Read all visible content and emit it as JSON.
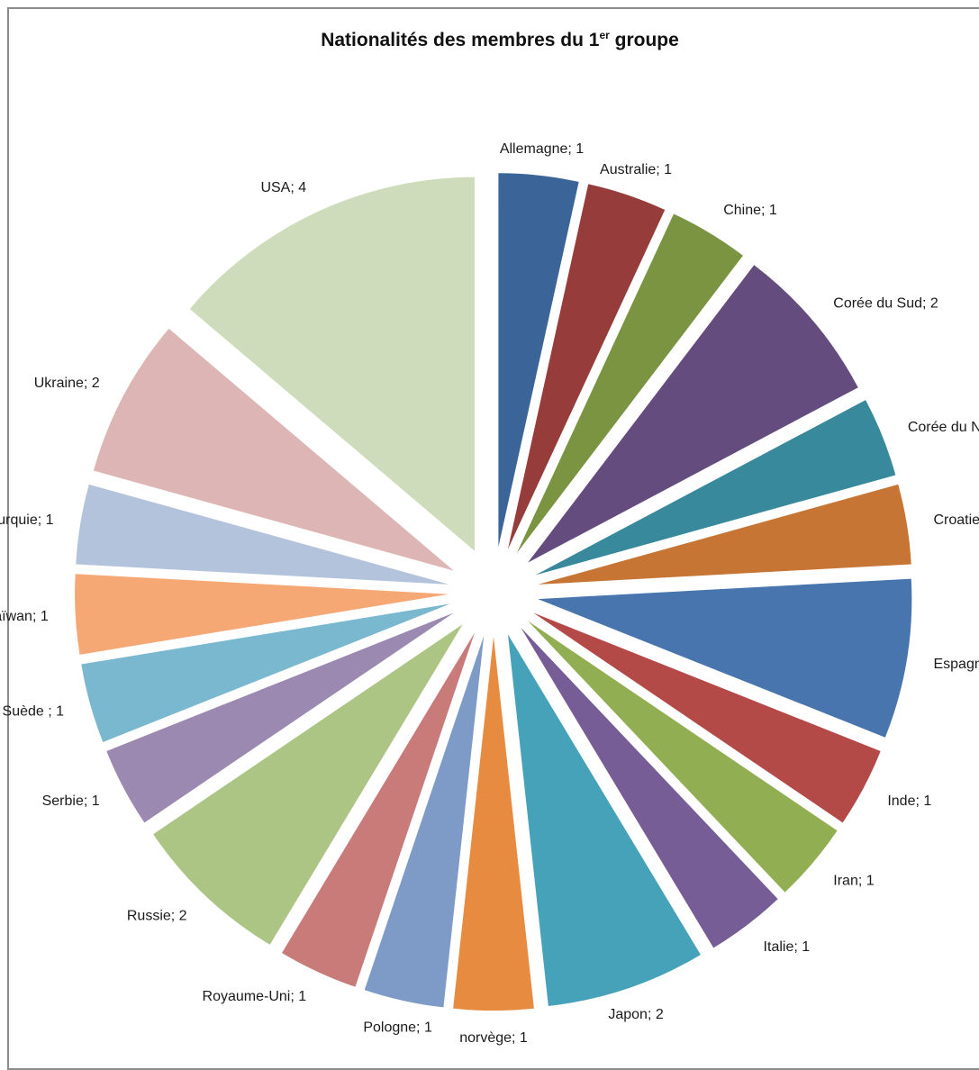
{
  "chart_data": {
    "type": "pie",
    "title": "Nationalités des membres du 1",
    "title_sup": "er",
    "title_tail": " groupe",
    "exploded": true,
    "label_format": "category; value",
    "slices": [
      {
        "label": "Allemagne",
        "value": 1,
        "color": "#3B6598"
      },
      {
        "label": "Australie",
        "value": 1,
        "color": "#963C3B"
      },
      {
        "label": "Chine",
        "value": 1,
        "color": "#7A9441"
      },
      {
        "label": "Corée du Sud",
        "value": 2,
        "color": "#644D7E"
      },
      {
        "label": "Corée du Nord",
        "value": 1,
        "color": "#37899B"
      },
      {
        "label": "Croatie",
        "value": 1,
        "color": "#C77534"
      },
      {
        "label": "Espagne",
        "value": 2,
        "color": "#4875AE"
      },
      {
        "label": "Inde",
        "value": 1,
        "color": "#B34A47"
      },
      {
        "label": "Iran",
        "value": 1,
        "color": "#91AF52"
      },
      {
        "label": "Italie",
        "value": 1,
        "color": "#775D96"
      },
      {
        "label": "Japon",
        "value": 2,
        "color": "#46A2B9"
      },
      {
        "label": "norvège",
        "value": 1,
        "color": "#E68B40"
      },
      {
        "label": "Pologne",
        "value": 1,
        "color": "#7E9AC7"
      },
      {
        "label": "Royaume-Uni",
        "value": 1,
        "color": "#C97B7A"
      },
      {
        "label": "Russie",
        "value": 2,
        "color": "#ADC584"
      },
      {
        "label": "Serbie",
        "value": 1,
        "color": "#9B89B1"
      },
      {
        "label": "Suède ",
        "value": 1,
        "color": "#79B8CE"
      },
      {
        "label": "Taïwan",
        "value": 1,
        "color": "#F5A874"
      },
      {
        "label": "Turquie",
        "value": 1,
        "color": "#B4C3DC"
      },
      {
        "label": "Ukraine",
        "value": 2,
        "color": "#DDB5B5"
      },
      {
        "label": "USA",
        "value": 4,
        "color": "#CFDCBB"
      }
    ]
  }
}
